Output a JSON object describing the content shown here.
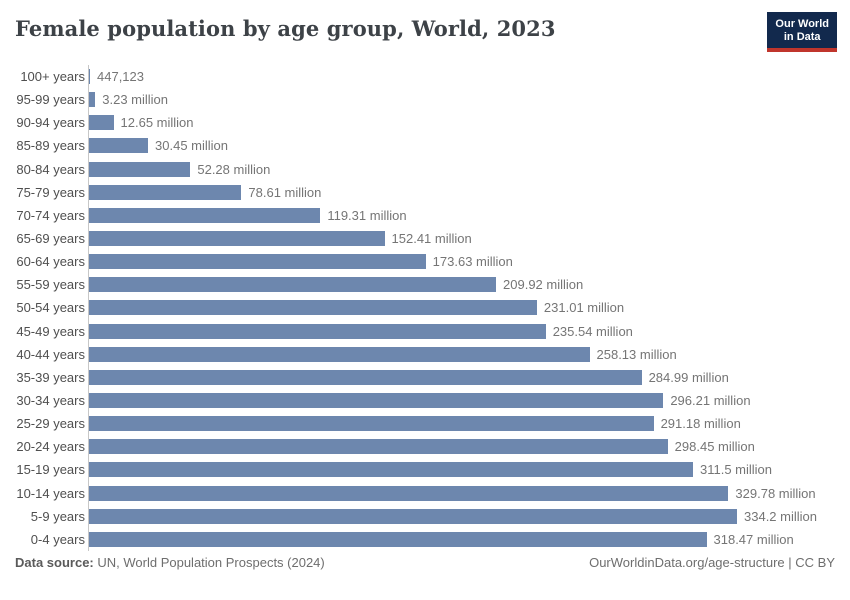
{
  "header": {
    "title": "Female population by age group, World, 2023"
  },
  "logo": {
    "line1": "Our World",
    "line2": "in Data",
    "bg_color": "#12294d",
    "accent_color": "#c0352c"
  },
  "footer": {
    "source_label": "Data source:",
    "source_text": "UN, World Population Prospects (2024)",
    "right_text": "OurWorldinData.org/age-structure | CC BY"
  },
  "chart_data": {
    "type": "bar",
    "orientation": "horizontal",
    "title": "Female population by age group, World, 2023",
    "unit": "million people",
    "grid": false,
    "xlim": [
      0,
      334.2
    ],
    "bar_color": "#6d87ae",
    "axis_color": "#c7c7c7",
    "categories": [
      "100+ years",
      "95-99 years",
      "90-94 years",
      "85-89 years",
      "80-84 years",
      "75-79 years",
      "70-74 years",
      "65-69 years",
      "60-64 years",
      "55-59 years",
      "50-54 years",
      "45-49 years",
      "40-44 years",
      "35-39 years",
      "30-34 years",
      "25-29 years",
      "20-24 years",
      "15-19 years",
      "10-14 years",
      "5-9 years",
      "0-4 years"
    ],
    "values_millions": [
      0.447123,
      3.23,
      12.65,
      30.45,
      52.28,
      78.61,
      119.31,
      152.41,
      173.63,
      209.92,
      231.01,
      235.54,
      258.13,
      284.99,
      296.21,
      291.18,
      298.45,
      311.5,
      329.78,
      334.2,
      318.47
    ],
    "value_labels": [
      "447,123",
      "3.23 million",
      "12.65 million",
      "30.45 million",
      "52.28 million",
      "78.61 million",
      "119.31 million",
      "152.41 million",
      "173.63 million",
      "209.92 million",
      "231.01 million",
      "235.54 million",
      "258.13 million",
      "284.99 million",
      "296.21 million",
      "291.18 million",
      "298.45 million",
      "311.5 million",
      "329.78 million",
      "334.2 million",
      "318.47 million"
    ]
  }
}
